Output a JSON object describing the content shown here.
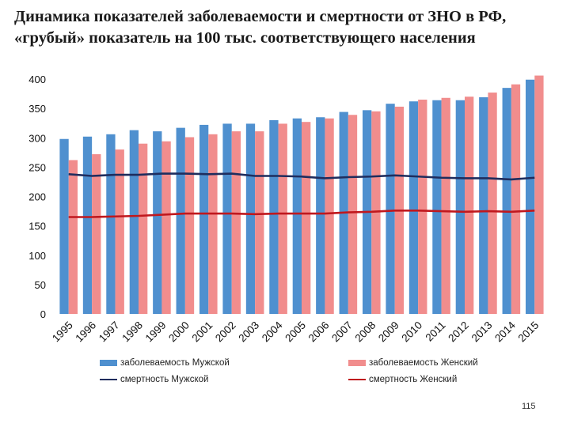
{
  "slide": {
    "title_line1": "Динамика показателей заболеваемости и смертности от ЗНО в РФ,",
    "title_line2": "«грубый» показатель на 100 тыс. соответствующего населения",
    "page_number": "115"
  },
  "chart_data": {
    "type": "bar",
    "categories": [
      "1995",
      "1996",
      "1997",
      "1998",
      "1999",
      "2000",
      "2001",
      "2002",
      "2003",
      "2004",
      "2005",
      "2006",
      "2007",
      "2008",
      "2009",
      "2010",
      "2011",
      "2012",
      "2013",
      "2014",
      "2015"
    ],
    "series": [
      {
        "name": "заболеваемость Мужской",
        "kind": "bar",
        "color": "#4f90cf",
        "values": [
          298,
          302,
          306,
          313,
          311,
          317,
          322,
          324,
          324,
          330,
          333,
          335,
          344,
          347,
          358,
          362,
          364,
          364,
          369,
          385,
          399
        ]
      },
      {
        "name": "заболеваемость Женский",
        "kind": "bar",
        "color": "#f18d8d",
        "values": [
          262,
          272,
          280,
          290,
          294,
          301,
          306,
          311,
          311,
          324,
          327,
          333,
          339,
          345,
          353,
          365,
          368,
          370,
          377,
          391,
          406
        ]
      },
      {
        "name": "смертность Мужской",
        "kind": "line",
        "color": "#1f2d5e",
        "values": [
          238,
          235,
          237,
          237,
          239,
          239,
          238,
          239,
          235,
          235,
          234,
          231,
          233,
          234,
          236,
          234,
          232,
          231,
          231,
          229,
          232
        ]
      },
      {
        "name": "смертность Женский",
        "kind": "line",
        "color": "#c0181e",
        "values": [
          165,
          165,
          166,
          167,
          169,
          171,
          171,
          171,
          170,
          171,
          171,
          171,
          173,
          174,
          176,
          176,
          175,
          174,
          175,
          174,
          176
        ]
      }
    ],
    "yticks": [
      "0",
      "50",
      "100",
      "150",
      "200",
      "250",
      "300",
      "350",
      "400"
    ],
    "ylim": [
      0,
      400
    ],
    "grid": false,
    "legend": "bottom",
    "xlabel": "",
    "ylabel": ""
  }
}
